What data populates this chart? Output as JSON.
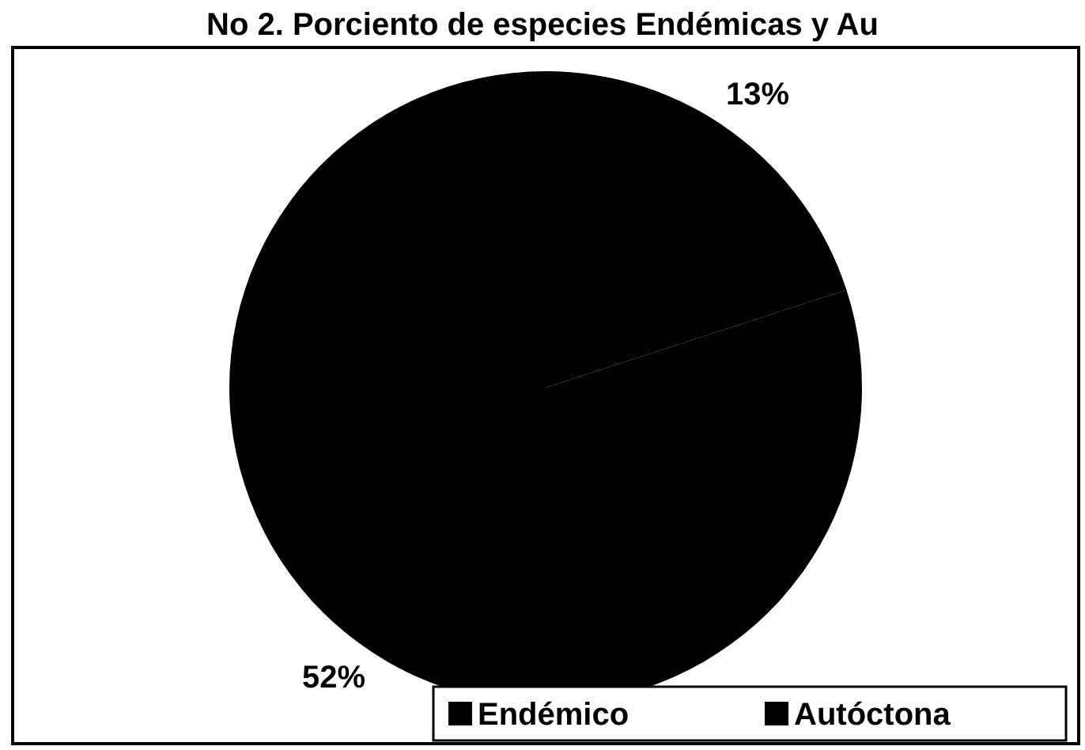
{
  "chart_data": {
    "type": "pie",
    "title": "No 2. Porciento de especies Endémicas y Au",
    "categories": [
      "Endémico",
      "Autóctona"
    ],
    "values": [
      13,
      52
    ],
    "colors": [
      "#000000",
      "#000000"
    ],
    "value_labels": [
      "13%",
      "52%"
    ],
    "legend": "bottom right"
  }
}
